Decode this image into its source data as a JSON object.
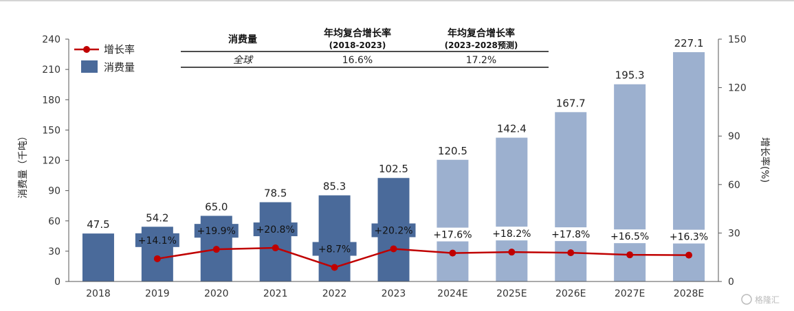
{
  "chart_data": {
    "type": "bar",
    "categories": [
      "2018",
      "2019",
      "2020",
      "2021",
      "2022",
      "2023",
      "2024E",
      "2025E",
      "2026E",
      "2027E",
      "2028E"
    ],
    "series": [
      {
        "name": "消费量",
        "type": "bar",
        "axis": "left",
        "values": [
          47.5,
          54.2,
          65.0,
          78.5,
          85.3,
          102.5,
          120.5,
          142.4,
          167.7,
          195.3,
          227.1
        ],
        "value_labels": [
          "47.5",
          "54.2",
          "65.0",
          "78.5",
          "85.3",
          "102.5",
          "120.5",
          "142.4",
          "167.7",
          "195.3",
          "227.1"
        ],
        "colors": [
          "#4a6a9a",
          "#4a6a9a",
          "#4a6a9a",
          "#4a6a9a",
          "#4a6a9a",
          "#4a6a9a",
          "#9cb0cf",
          "#9cb0cf",
          "#9cb0cf",
          "#9cb0cf",
          "#9cb0cf"
        ]
      },
      {
        "name": "增长率",
        "type": "line",
        "axis": "right",
        "color": "#c00000",
        "values": [
          null,
          14.1,
          19.9,
          20.8,
          8.7,
          20.2,
          17.6,
          18.2,
          17.8,
          16.5,
          16.3
        ],
        "value_labels": [
          "",
          "+14.1%",
          "+19.9%",
          "+20.8%",
          "+8.7%",
          "+20.2%",
          "+17.6%",
          "+18.2%",
          "+17.8%",
          "+16.5%",
          "+16.3%"
        ]
      }
    ],
    "ylabel": "消费量（千吨）",
    "y2label": "增长率(%)",
    "ylim": [
      0,
      240
    ],
    "y2lim": [
      0,
      150
    ],
    "yticks": [
      "0",
      "30",
      "60",
      "90",
      "120",
      "150",
      "180",
      "210",
      "240"
    ],
    "y2ticks": [
      "0",
      "30",
      "60",
      "90",
      "120",
      "150"
    ],
    "legend": [
      {
        "label": "增长率",
        "kind": "line",
        "color": "#c00000"
      },
      {
        "label": "消费量",
        "kind": "bar",
        "color": "#4a6a9a"
      }
    ],
    "legend_position": "top-left",
    "grid": false
  },
  "table": {
    "headers": [
      "消费量",
      "年均复合增长率",
      "年均复合增长率"
    ],
    "subheaders": [
      "",
      "(2018-2023)",
      "(2023-2028预测)"
    ],
    "row": [
      "全球",
      "16.6%",
      "17.2%"
    ]
  },
  "watermark": "格隆汇"
}
